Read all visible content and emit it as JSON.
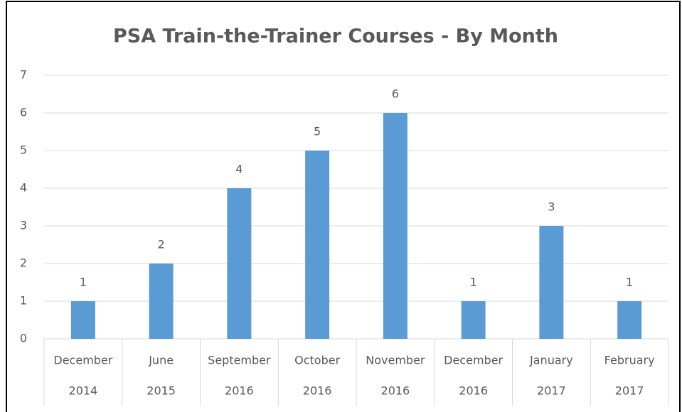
{
  "chart_data": {
    "type": "bar",
    "title": "PSA Train-the-Trainer Courses - By Month",
    "categories": [
      [
        "December",
        "2014"
      ],
      [
        "June",
        "2015"
      ],
      [
        "September",
        "2016"
      ],
      [
        "October",
        "2016"
      ],
      [
        "November",
        "2016"
      ],
      [
        "December",
        "2016"
      ],
      [
        "January",
        "2017"
      ],
      [
        "February",
        "2017"
      ]
    ],
    "values": [
      1,
      2,
      4,
      5,
      6,
      1,
      3,
      1
    ],
    "color": "#5b9bd5",
    "ylim": [
      0,
      7
    ],
    "yticks": [
      0,
      1,
      2,
      3,
      4,
      5,
      6,
      7
    ],
    "grid": true
  }
}
